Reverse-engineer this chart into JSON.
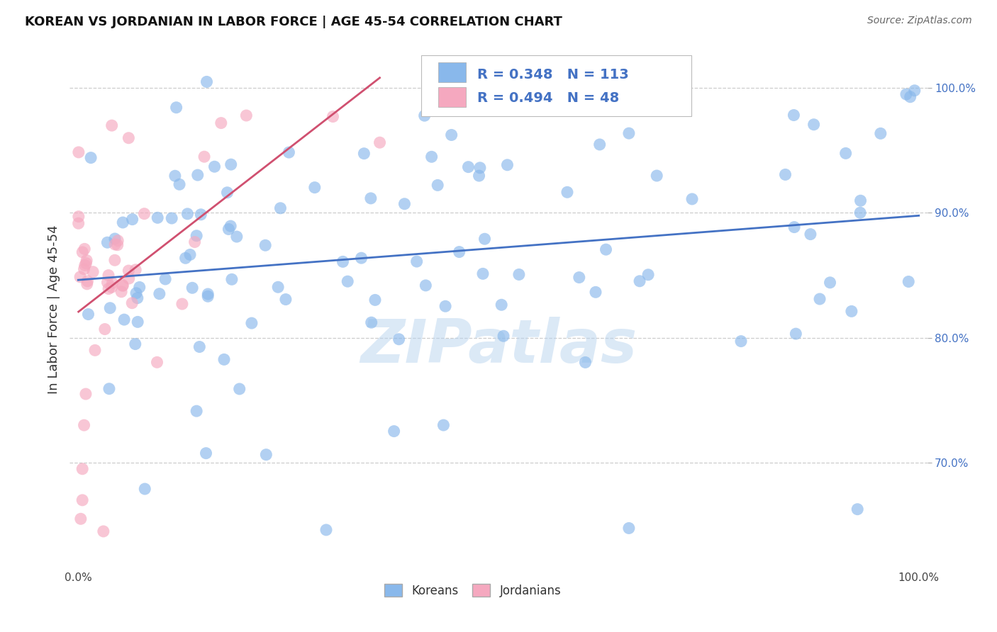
{
  "title": "KOREAN VS JORDANIAN IN LABOR FORCE | AGE 45-54 CORRELATION CHART",
  "source": "Source: ZipAtlas.com",
  "ylabel": "In Labor Force | Age 45-54",
  "ytick_labels": [
    "70.0%",
    "80.0%",
    "90.0%",
    "100.0%"
  ],
  "ytick_values": [
    0.7,
    0.8,
    0.9,
    1.0
  ],
  "xtick_labels": [
    "0.0%",
    "100.0%"
  ],
  "xtick_values": [
    0.0,
    1.0
  ],
  "xlim": [
    -0.01,
    1.01
  ],
  "ylim": [
    0.615,
    1.03
  ],
  "korean_R": 0.348,
  "korean_N": 113,
  "jordanian_R": 0.494,
  "jordanian_N": 48,
  "korean_color": "#89b8eb",
  "jordanian_color": "#f5a8bf",
  "korean_line_color": "#4472c4",
  "jordanian_line_color": "#d05070",
  "background_color": "#ffffff",
  "grid_color": "#cccccc",
  "watermark": "ZIPatlas",
  "legend_label_korean": "Koreans",
  "legend_label_jordanian": "Jordanians",
  "text_color_blue": "#4472c4",
  "title_fontsize": 13,
  "source_fontsize": 10,
  "tick_fontsize": 11,
  "annot_fontsize": 14
}
